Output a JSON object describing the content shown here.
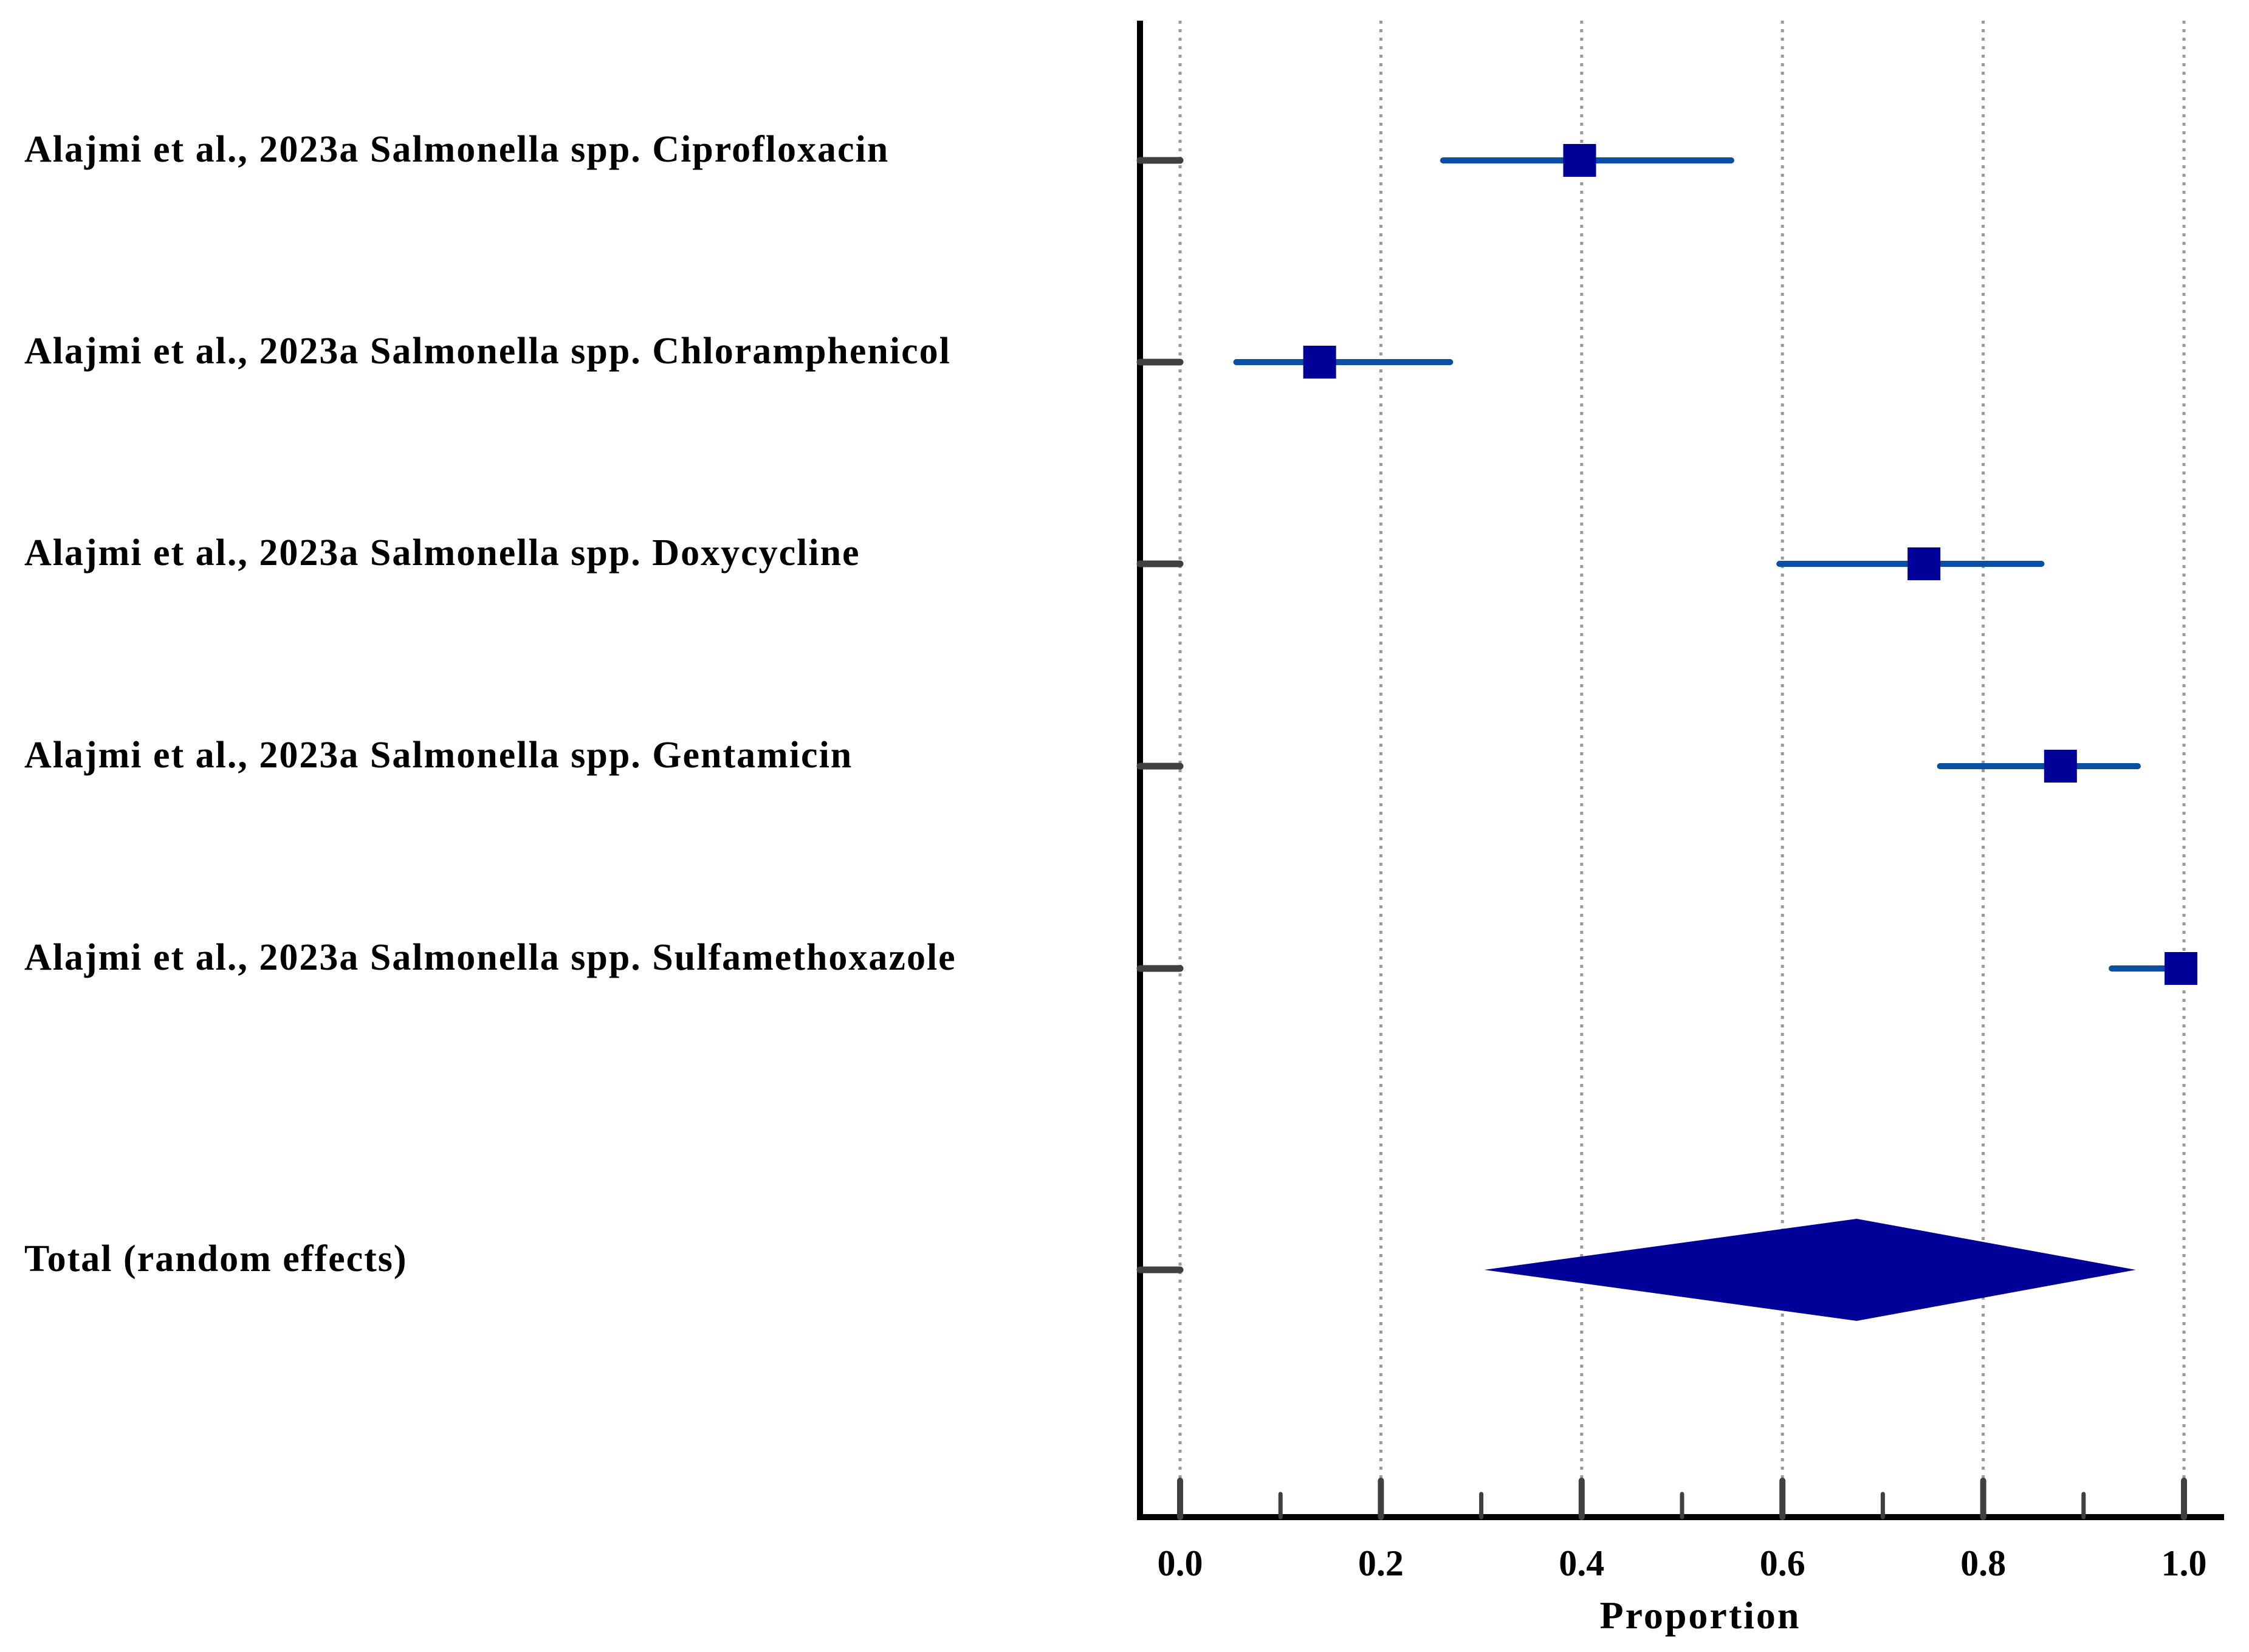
{
  "chart_data": {
    "type": "forest",
    "xlabel": "Proportion",
    "xlim": [
      0.0,
      1.0
    ],
    "xticks": [
      "0.0",
      "0.2",
      "0.4",
      "0.6",
      "0.8",
      "1.0"
    ],
    "minor_tick_step": 0.1,
    "grid": "vertical dotted at major ticks",
    "studies": [
      {
        "label": "Alajmi et al., 2023a Salmonella spp. Ciprofloxacin",
        "estimate": 0.398,
        "ci_low": 0.262,
        "ci_high": 0.549
      },
      {
        "label": "Alajmi et al., 2023a Salmonella spp. Chloramphenicol",
        "estimate": 0.139,
        "ci_low": 0.056,
        "ci_high": 0.269
      },
      {
        "label": "Alajmi et al., 2023a Salmonella spp. Doxycycline",
        "estimate": 0.741,
        "ci_low": 0.597,
        "ci_high": 0.858
      },
      {
        "label": "Alajmi et al., 2023a Salmonella spp. Gentamicin",
        "estimate": 0.877,
        "ci_low": 0.757,
        "ci_high": 0.954
      },
      {
        "label": "Alajmi et al., 2023a Salmonella spp. Sulfamethoxazole",
        "estimate": 0.997,
        "ci_low": 0.928,
        "ci_high": 1.0
      }
    ],
    "total": {
      "label": "Total (random effects)",
      "estimate": 0.674,
      "ci_low": 0.303,
      "ci_high": 0.952
    }
  },
  "colors": {
    "ci_line": "#0a4fa0",
    "marker": "#000099",
    "axis": "#000000",
    "tick": "#404040",
    "grid": "#9a9a9a"
  }
}
